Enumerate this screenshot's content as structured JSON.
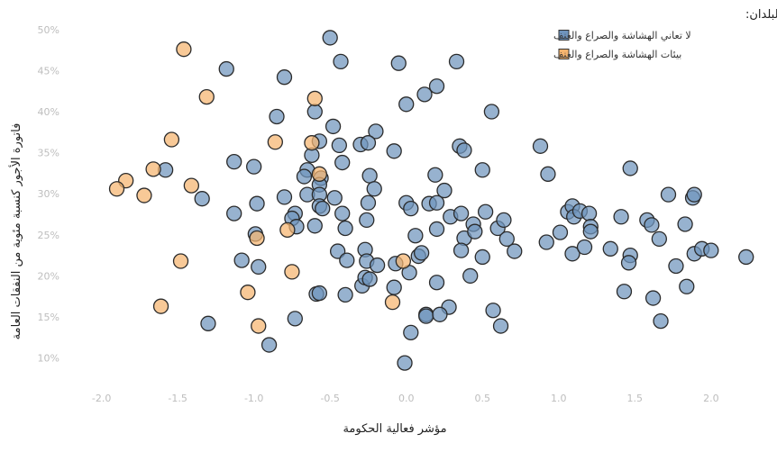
{
  "chart_data": {
    "type": "scatter",
    "xlabel": "مؤشر فعالية الحكومة",
    "ylabel": "فاتورة الأجور كنسبة مئوية من النفقات العامة",
    "xlim": [
      -2.4,
      2.35
    ],
    "ylim": [
      7,
      52.5
    ],
    "x_ticks": [
      -2.0,
      -1.5,
      -1.0,
      -0.5,
      0.0,
      0.5,
      1.0,
      1.5,
      2.0
    ],
    "x_tick_labels": [
      "-2.0",
      "-1.5",
      "-1.0",
      "-0.5",
      "0.0",
      "0.5",
      "1.0",
      "1.5",
      "2.0"
    ],
    "y_ticks": [
      10,
      15,
      20,
      25,
      30,
      35,
      40,
      45,
      50
    ],
    "y_tick_labels": [
      "10%",
      "15%",
      "20%",
      "25%",
      "30%",
      "35%",
      "40%",
      "45%",
      "50%"
    ],
    "grid": false,
    "legend": {
      "title": "تصنيف البلدان:",
      "placement": "top-right"
    },
    "series": [
      {
        "name": "لا تعاني الهشاشة والصراع والعنف",
        "color": "#6f94bd",
        "points": [
          [
            -0.5,
            49
          ],
          [
            -1.18,
            45.2
          ],
          [
            -0.8,
            44.2
          ],
          [
            -0.43,
            46.1
          ],
          [
            -0.05,
            45.9
          ],
          [
            0.33,
            46.1
          ],
          [
            -0.6,
            40
          ],
          [
            0.0,
            40.9
          ],
          [
            0.12,
            42.1
          ],
          [
            0.2,
            43.1
          ],
          [
            0.56,
            40
          ],
          [
            -0.85,
            39.4
          ],
          [
            -0.48,
            38.2
          ],
          [
            -0.2,
            37.6
          ],
          [
            -0.57,
            36.4
          ],
          [
            -0.44,
            35.9
          ],
          [
            -0.3,
            36
          ],
          [
            -0.25,
            36.2
          ],
          [
            -0.62,
            34.7
          ],
          [
            -0.08,
            35.2
          ],
          [
            0.35,
            35.8
          ],
          [
            0.38,
            35.3
          ],
          [
            0.88,
            35.8
          ],
          [
            -1.58,
            32.9
          ],
          [
            -1.13,
            33.9
          ],
          [
            -1.0,
            33.3
          ],
          [
            -0.65,
            32.9
          ],
          [
            -0.67,
            32.1
          ],
          [
            -0.56,
            31.9
          ],
          [
            -0.57,
            31.1
          ],
          [
            -0.42,
            33.8
          ],
          [
            -0.24,
            32.2
          ],
          [
            -0.21,
            30.6
          ],
          [
            0.19,
            32.3
          ],
          [
            0.25,
            30.4
          ],
          [
            0.5,
            32.9
          ],
          [
            0.93,
            32.4
          ],
          [
            1.47,
            33.1
          ],
          [
            -1.34,
            29.4
          ],
          [
            -0.98,
            28.8
          ],
          [
            -0.8,
            29.6
          ],
          [
            -0.65,
            29.9
          ],
          [
            -0.57,
            29.9
          ],
          [
            -0.57,
            28.5
          ],
          [
            -0.55,
            28.2
          ],
          [
            -0.47,
            29.5
          ],
          [
            -0.42,
            27.6
          ],
          [
            -0.25,
            28.9
          ],
          [
            -0.26,
            26.8
          ],
          [
            0.0,
            28.9
          ],
          [
            0.03,
            28.2
          ],
          [
            0.15,
            28.8
          ],
          [
            0.2,
            28.9
          ],
          [
            0.29,
            27.2
          ],
          [
            0.36,
            27.6
          ],
          [
            0.44,
            26.3
          ],
          [
            0.52,
            27.8
          ],
          [
            -1.13,
            27.6
          ],
          [
            -0.73,
            27.6
          ],
          [
            -0.75,
            27
          ],
          [
            -0.72,
            26
          ],
          [
            -0.6,
            26.1
          ],
          [
            -0.4,
            25.8
          ],
          [
            0.06,
            24.9
          ],
          [
            0.2,
            25.7
          ],
          [
            0.38,
            24.6
          ],
          [
            0.45,
            25.4
          ],
          [
            0.6,
            25.8
          ],
          [
            0.64,
            26.8
          ],
          [
            0.66,
            24.5
          ],
          [
            0.71,
            23
          ],
          [
            -0.99,
            25.1
          ],
          [
            -0.45,
            23
          ],
          [
            -0.27,
            23.2
          ],
          [
            -0.26,
            21.8
          ],
          [
            -0.39,
            21.9
          ],
          [
            -1.08,
            21.9
          ],
          [
            -0.97,
            21.1
          ],
          [
            -0.19,
            21.3
          ],
          [
            -0.07,
            21.5
          ],
          [
            0.08,
            22.4
          ],
          [
            0.1,
            22.8
          ],
          [
            0.36,
            23.1
          ],
          [
            0.5,
            22.3
          ],
          [
            0.02,
            20.4
          ],
          [
            0.42,
            20
          ],
          [
            0.2,
            19.2
          ],
          [
            -0.59,
            17.8
          ],
          [
            -0.57,
            17.9
          ],
          [
            -0.4,
            17.7
          ],
          [
            -0.29,
            18.8
          ],
          [
            -0.27,
            19.8
          ],
          [
            -0.24,
            19.6
          ],
          [
            -0.08,
            18.6
          ],
          [
            0.13,
            15.3
          ],
          [
            0.13,
            15.1
          ],
          [
            0.28,
            16.2
          ],
          [
            0.22,
            15.3
          ],
          [
            0.57,
            15.8
          ],
          [
            0.62,
            13.9
          ],
          [
            -1.3,
            14.2
          ],
          [
            -0.73,
            14.8
          ],
          [
            0.03,
            13.1
          ],
          [
            -0.9,
            11.6
          ],
          [
            -0.01,
            9.4
          ],
          [
            0.92,
            24.1
          ],
          [
            1.01,
            25.3
          ],
          [
            1.06,
            27.8
          ],
          [
            1.09,
            28.5
          ],
          [
            1.1,
            27.2
          ],
          [
            1.14,
            27.9
          ],
          [
            1.2,
            27.6
          ],
          [
            1.21,
            26
          ],
          [
            1.21,
            25.4
          ],
          [
            1.09,
            22.7
          ],
          [
            1.17,
            23.5
          ],
          [
            1.34,
            23.3
          ],
          [
            1.41,
            27.2
          ],
          [
            1.47,
            22.5
          ],
          [
            1.46,
            21.6
          ],
          [
            1.43,
            18.1
          ],
          [
            1.58,
            26.8
          ],
          [
            1.61,
            26.2
          ],
          [
            1.66,
            24.5
          ],
          [
            1.72,
            29.9
          ],
          [
            1.83,
            26.3
          ],
          [
            1.88,
            29.5
          ],
          [
            1.89,
            29.9
          ],
          [
            1.89,
            22.7
          ],
          [
            1.77,
            21.2
          ],
          [
            1.94,
            23.3
          ],
          [
            2.0,
            23.1
          ],
          [
            2.23,
            22.3
          ],
          [
            1.62,
            17.3
          ],
          [
            1.67,
            14.5
          ],
          [
            1.84,
            18.7
          ]
        ]
      },
      {
        "name": "بيئات الهشاشة والصراع والعنف",
        "color": "#f5b46f",
        "points": [
          [
            -1.46,
            47.6
          ],
          [
            -1.31,
            41.8
          ],
          [
            -0.6,
            41.6
          ],
          [
            -1.54,
            36.6
          ],
          [
            -0.86,
            36.3
          ],
          [
            -0.62,
            36.2
          ],
          [
            -0.57,
            32.4
          ],
          [
            -1.66,
            33
          ],
          [
            -1.84,
            31.6
          ],
          [
            -1.41,
            31
          ],
          [
            -1.9,
            30.6
          ],
          [
            -1.72,
            29.8
          ],
          [
            -0.98,
            24.6
          ],
          [
            -0.78,
            25.6
          ],
          [
            -1.48,
            21.8
          ],
          [
            -0.75,
            20.5
          ],
          [
            -1.04,
            18
          ],
          [
            -1.61,
            16.3
          ],
          [
            -0.97,
            13.9
          ],
          [
            -0.09,
            16.8
          ],
          [
            -0.02,
            21.8
          ]
        ]
      }
    ]
  }
}
